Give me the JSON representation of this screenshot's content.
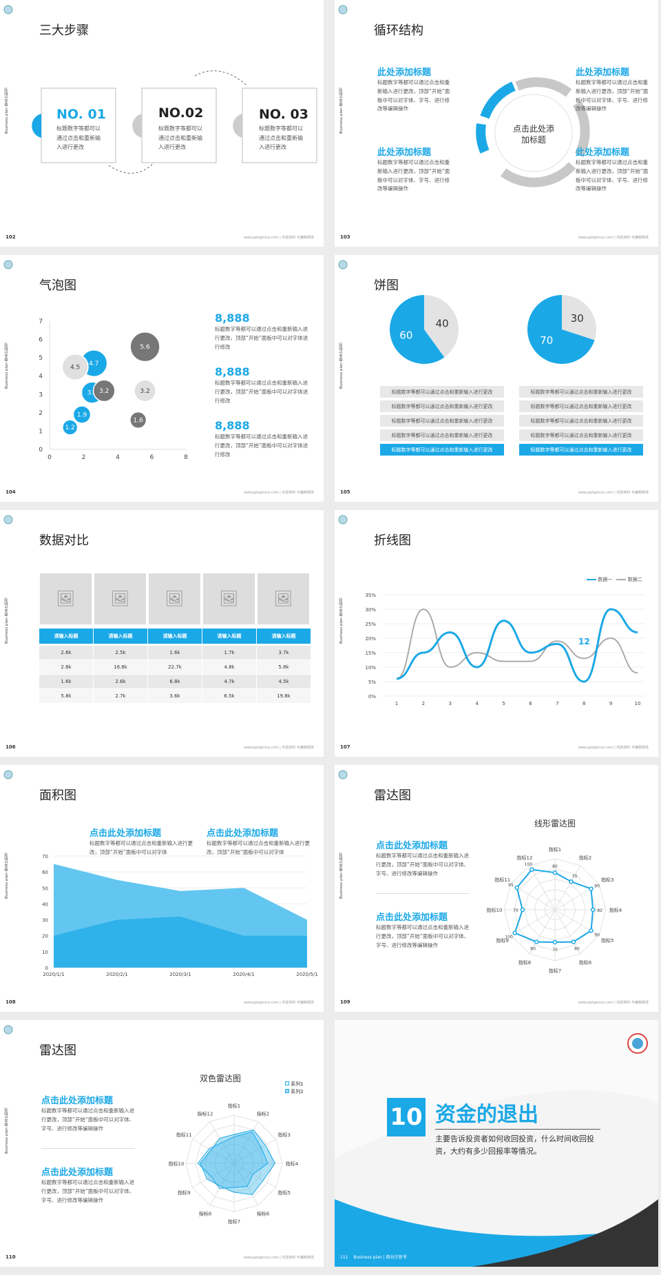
{
  "side_text": "Business plan 商业计划书",
  "footer": "www.pptgenius.com | 内容资料 可编辑修改",
  "slides": {
    "s102": {
      "num": "102",
      "title": "三大步骤",
      "steps": [
        {
          "label": "NO. 01",
          "text": "标题数字等都可以通过点击和重新输入进行更改"
        },
        {
          "label": "NO.02",
          "text": "标题数字等都可以通过点击和重新输入进行更改"
        },
        {
          "label": "NO. 03",
          "text": "标题数字等都可以通过点击和重新输入进行更改"
        }
      ]
    },
    "s103": {
      "num": "103",
      "title": "循环结构",
      "center": "点击此处添加标题",
      "items": [
        {
          "h": "此处添加标题",
          "t": "标题数字等都可以通过点击和重新输入进行更改，顶部“开始”面板中可以对字体、字号、进行修改等编辑操作"
        },
        {
          "h": "此处添加标题",
          "t": "标题数字等都可以通过点击和重新输入进行更改，顶部“开始”面板中可以对字体、字号、进行修改等编辑操作"
        },
        {
          "h": "此处添加标题",
          "t": "标题数字等都可以通过点击和重新输入进行更改，顶部“开始”面板中可以对字体、字号、进行修改等编辑操作"
        },
        {
          "h": "此处添加标题",
          "t": "标题数字等都可以通过点击和重新输入进行更改，顶部“开始”面板中可以对字体、字号、进行修改等编辑操作"
        }
      ]
    },
    "s104": {
      "num": "104",
      "title": "气泡图",
      "stats": [
        {
          "v": "8,888",
          "t": "标题数字等都可以通过点击和重新输入进行更改，顶部“开始”面板中可以对字体进行修改"
        },
        {
          "v": "8,888",
          "t": "标题数字等都可以通过点击和重新输入进行更改，顶部“开始”面板中可以对字体进行修改"
        },
        {
          "v": "8,888",
          "t": "标题数字等都可以通过点击和重新输入进行更改，顶部“开始”面板中可以对字体进行修改"
        }
      ]
    },
    "s105": {
      "num": "105",
      "title": "饼图",
      "pies": [
        {
          "a": 40,
          "b": 60
        },
        {
          "a": 30,
          "b": 70
        }
      ],
      "rows": [
        "标题数字等都可以通过点击和重新输入进行更改",
        "标题数字等都可以通过点击和重新输入进行更改",
        "标题数字等都可以通过点击和重新输入进行更改",
        "标题数字等都可以通过点击和重新输入进行更改",
        "标题数字等都可以通过点击和重新输入进行更改"
      ]
    },
    "s106": {
      "num": "106",
      "title": "数据对比",
      "headers": [
        "请输入标题",
        "请输入标题",
        "请输入标题",
        "请输入标题",
        "请输入标题"
      ],
      "rows": [
        [
          "2.6k",
          "2.5k",
          "1.6k",
          "1.7k",
          "3.7k"
        ],
        [
          "2.8k",
          "16.8k",
          "22.7k",
          "4.8k",
          "5.8k"
        ],
        [
          "1.6k",
          "2.6k",
          "6.8k",
          "4.7k",
          "4.5k"
        ],
        [
          "5.8k",
          "2.7k",
          "3.6k",
          "6.5k",
          "19.8k"
        ]
      ]
    },
    "s107": {
      "num": "107",
      "title": "折线图",
      "legend": [
        "数据一",
        "数据二"
      ],
      "annot": "12"
    },
    "s108": {
      "num": "108",
      "title": "面积图",
      "heads": [
        {
          "h": "点击此处添加标题",
          "t": "标题数字等都可以通过点击和重新输入进行更改，顶部“开始”面板中可以对字体"
        },
        {
          "h": "点击此处添加标题",
          "t": "标题数字等都可以通过点击和重新输入进行更改，顶部“开始”面板中可以对字体"
        }
      ]
    },
    "s109": {
      "num": "109",
      "title": "雷达图",
      "chart_title": "线形雷达图",
      "heads": [
        {
          "h": "点击此处添加标题",
          "t": "标题数字等都可以通过点击和重新输入进行更改，顶部“开始”面板中可以对字体、字号、进行修改等编辑操作"
        },
        {
          "h": "点击此处添加标题",
          "t": "标题数字等都可以通过点击和重新输入进行更改，顶部“开始”面板中可以对字体、字号、进行修改等编辑操作"
        }
      ]
    },
    "s110": {
      "num": "110",
      "title": "雷达图",
      "chart_title": "双色雷达图",
      "legend": [
        "系列1",
        "系列2"
      ],
      "heads": [
        {
          "h": "点击此处添加标题",
          "t": "标题数字等都可以通过点击和重新输入进行更改，顶部“开始”面板中可以对字体、字号、进行修改等编辑操作"
        },
        {
          "h": "点击此处添加标题",
          "t": "标题数字等都可以通过点击和重新输入进行更改，顶部“开始”面板中可以对字体、字号、进行修改等编辑操作"
        }
      ]
    },
    "s111": {
      "num": "111",
      "bignum": "10",
      "title": "资金的退出",
      "sub": "主要告诉投资者如何收回投资，什么时间收回投资，大约有多少回报率等情况。",
      "foot": "Business plan | 商业计划书"
    }
  },
  "chart_data": [
    {
      "type": "scatter",
      "title": "气泡图",
      "xlim": [
        0,
        8
      ],
      "ylim": [
        0,
        7
      ],
      "series": [
        {
          "name": "蓝",
          "points": [
            [
              1.2,
              1.2
            ],
            [
              1.9,
              1.9
            ],
            [
              2.5,
              3.1
            ],
            [
              2.6,
              4.7
            ]
          ]
        },
        {
          "name": "灰",
          "points": [
            [
              1.5,
              4.5
            ],
            [
              3.2,
              3.2
            ],
            [
              5.6,
              5.6
            ],
            [
              5.6,
              3.2
            ],
            [
              5.2,
              1.6
            ]
          ]
        }
      ]
    },
    {
      "type": "pie",
      "values": [
        40,
        60
      ]
    },
    {
      "type": "pie",
      "values": [
        30,
        70
      ]
    },
    {
      "type": "line",
      "x": [
        1,
        2,
        3,
        4,
        5,
        6,
        7,
        8,
        9,
        10
      ],
      "ylim": [
        0,
        35
      ],
      "series": [
        {
          "name": "数据一",
          "values": [
            6,
            15,
            22,
            10,
            26,
            15,
            18,
            5,
            30,
            22
          ]
        },
        {
          "name": "数据二",
          "values": [
            6,
            30,
            10,
            15,
            12,
            12,
            19,
            13,
            20,
            8
          ]
        }
      ]
    },
    {
      "type": "area",
      "categories": [
        "2020/1/1",
        "2020/2/1",
        "2020/3/1",
        "2020/4/1",
        "2020/5/1"
      ],
      "ylim": [
        0,
        70
      ],
      "series": [
        {
          "values": [
            65,
            55,
            48,
            50,
            30
          ]
        },
        {
          "values": [
            20,
            30,
            32,
            20,
            20
          ]
        }
      ]
    },
    {
      "type": "radar",
      "title": "线形雷达图",
      "labels": [
        "指标1",
        "指标2",
        "指标3",
        "指标4",
        "指标5",
        "指标6",
        "指标7",
        "指标8",
        "指标9",
        "指标10",
        "指标11",
        "指标12"
      ],
      "series": [
        {
          "values": [
            80,
            70,
            90,
            82,
            90,
            80,
            70,
            80,
            100,
            70,
            95,
            100
          ]
        }
      ]
    },
    {
      "type": "radar",
      "title": "双色雷达图",
      "labels": [
        "指标1",
        "指标2",
        "指标3",
        "指标4",
        "指标5",
        "指标6",
        "指标7",
        "指标8",
        "指标9",
        "指标10",
        "指标11",
        "指标12"
      ],
      "series": [
        {
          "name": "系列1",
          "values": [
            55,
            75,
            65,
            70,
            45,
            55,
            50,
            60,
            55,
            75,
            60,
            50
          ]
        },
        {
          "name": "系列2",
          "values": [
            60,
            80,
            75,
            85,
            70,
            75,
            60,
            55,
            65,
            70,
            55,
            60
          ]
        }
      ]
    }
  ]
}
